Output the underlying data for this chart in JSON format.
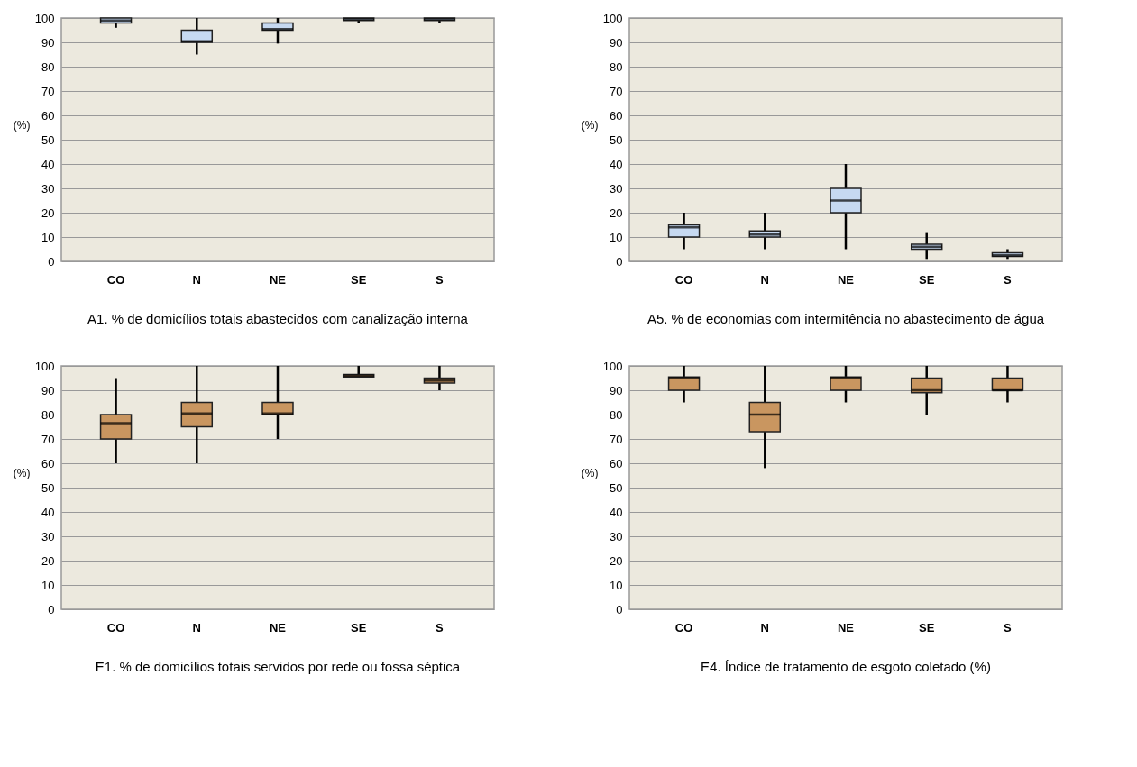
{
  "chart_data": [
    {
      "type": "box",
      "title": "A1. % de domicílios totais abastecidos com canalização interna",
      "ylabel": "(%)",
      "categories": [
        "CO",
        "N",
        "NE",
        "SE",
        "S"
      ],
      "ylim": [
        0,
        100
      ],
      "yticks": [
        0,
        10,
        20,
        30,
        40,
        50,
        60,
        70,
        80,
        90,
        100
      ],
      "grid": "y",
      "series": [
        {
          "color": "#c6d9f1",
          "boxes": [
            {
              "low": 96,
              "q1": 98,
              "median": 99,
              "q3": 100,
              "high": 100
            },
            {
              "low": 85,
              "q1": 90,
              "median": 90.5,
              "q3": 95,
              "high": 100
            },
            {
              "low": 89.5,
              "q1": 95,
              "median": 95.5,
              "q3": 98,
              "high": 100
            },
            {
              "low": 98,
              "q1": 99,
              "median": 99.5,
              "q3": 100,
              "high": 100
            },
            {
              "low": 98,
              "q1": 99,
              "median": 99.5,
              "q3": 100,
              "high": 100
            }
          ]
        }
      ]
    },
    {
      "type": "box",
      "title": "A5. % de economias com intermitência no abastecimento de água",
      "ylabel": "(%)",
      "categories": [
        "CO",
        "N",
        "NE",
        "SE",
        "S"
      ],
      "ylim": [
        0,
        100
      ],
      "yticks": [
        0,
        10,
        20,
        30,
        40,
        50,
        60,
        70,
        80,
        90,
        100
      ],
      "grid": "y",
      "series": [
        {
          "color": "#c6d9f1",
          "boxes": [
            {
              "low": 5,
              "q1": 10,
              "median": 14,
              "q3": 15,
              "high": 20
            },
            {
              "low": 5,
              "q1": 10,
              "median": 11,
              "q3": 12.5,
              "high": 20
            },
            {
              "low": 5,
              "q1": 20,
              "median": 25,
              "q3": 30,
              "high": 40
            },
            {
              "low": 1,
              "q1": 5,
              "median": 6,
              "q3": 7,
              "high": 12
            },
            {
              "low": 1,
              "q1": 2,
              "median": 2.5,
              "q3": 3.5,
              "high": 5
            }
          ]
        }
      ]
    },
    {
      "type": "box",
      "title": "E1. % de domicílios totais servidos por rede ou fossa séptica",
      "ylabel": "(%)",
      "categories": [
        "CO",
        "N",
        "NE",
        "SE",
        "S"
      ],
      "ylim": [
        0,
        100
      ],
      "yticks": [
        0,
        10,
        20,
        30,
        40,
        50,
        60,
        70,
        80,
        90,
        100
      ],
      "grid": "y",
      "series": [
        {
          "color": "#c99660",
          "boxes": [
            {
              "low": 60,
              "q1": 70,
              "median": 76.5,
              "q3": 80,
              "high": 95
            },
            {
              "low": 60,
              "q1": 75,
              "median": 80.5,
              "q3": 85,
              "high": 100
            },
            {
              "low": 70,
              "q1": 80,
              "median": 80.5,
              "q3": 85,
              "high": 100
            },
            {
              "low": 95.5,
              "q1": 95.5,
              "median": 96,
              "q3": 96.5,
              "high": 100
            },
            {
              "low": 90,
              "q1": 93,
              "median": 94,
              "q3": 95,
              "high": 100
            }
          ]
        }
      ]
    },
    {
      "type": "box",
      "title": "E4. Índice de tratamento de esgoto coletado (%)",
      "ylabel": "(%)",
      "categories": [
        "CO",
        "N",
        "NE",
        "SE",
        "S"
      ],
      "ylim": [
        0,
        100
      ],
      "yticks": [
        0,
        10,
        20,
        30,
        40,
        50,
        60,
        70,
        80,
        90,
        100
      ],
      "grid": "y",
      "series": [
        {
          "color": "#c99660",
          "boxes": [
            {
              "low": 85,
              "q1": 90,
              "median": 95,
              "q3": 95.5,
              "high": 100
            },
            {
              "low": 58,
              "q1": 73,
              "median": 80,
              "q3": 85,
              "high": 100
            },
            {
              "low": 85,
              "q1": 90,
              "median": 95,
              "q3": 95.5,
              "high": 100
            },
            {
              "low": 80,
              "q1": 89,
              "median": 90,
              "q3": 95,
              "high": 100
            },
            {
              "low": 85,
              "q1": 90,
              "median": 90,
              "q3": 95,
              "high": 100
            }
          ]
        }
      ]
    }
  ]
}
